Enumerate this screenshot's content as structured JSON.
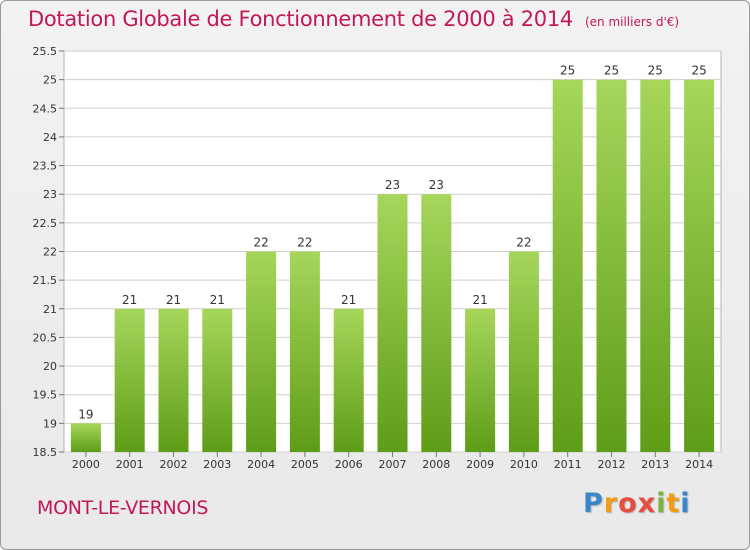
{
  "header": {
    "title": "Dotation Globale de Fonctionnement de 2000 à 2014",
    "unit": "(en milliers d'€)"
  },
  "footer": {
    "place": "MONT-LE-VERNOIS",
    "logo_parts": [
      "P",
      "r",
      "o",
      "x",
      "i",
      "t",
      "i"
    ]
  },
  "colors": {
    "title": "#c2185b",
    "bar_top": "#a6d65a",
    "bar_bottom": "#5e9d18",
    "grid": "#cfcfcf"
  },
  "chart_data": {
    "type": "bar",
    "title": "Dotation Globale de Fonctionnement de 2000 à 2014",
    "xlabel": "",
    "ylabel": "",
    "categories": [
      "2000",
      "2001",
      "2002",
      "2003",
      "2004",
      "2005",
      "2006",
      "2007",
      "2008",
      "2009",
      "2010",
      "2011",
      "2012",
      "2013",
      "2014"
    ],
    "values": [
      19,
      21,
      21,
      21,
      22,
      22,
      21,
      23,
      23,
      21,
      22,
      25,
      25,
      25,
      25
    ],
    "data_labels": [
      "19",
      "21",
      "21",
      "21",
      "22",
      "22",
      "21",
      "23",
      "23",
      "21",
      "22",
      "25",
      "25",
      "25",
      "25"
    ],
    "ylim": [
      18.5,
      25.5
    ],
    "yticks": [
      18.5,
      19,
      19.5,
      20,
      20.5,
      21,
      21.5,
      22,
      22.5,
      23,
      23.5,
      24,
      24.5,
      25,
      25.5
    ],
    "ytick_labels": [
      "18.5",
      "19",
      "19.5",
      "20",
      "20.5",
      "21",
      "21.5",
      "22",
      "22.5",
      "23",
      "23.5",
      "24",
      "24.5",
      "25",
      "25.5"
    ],
    "grid": true,
    "legend": "none"
  }
}
